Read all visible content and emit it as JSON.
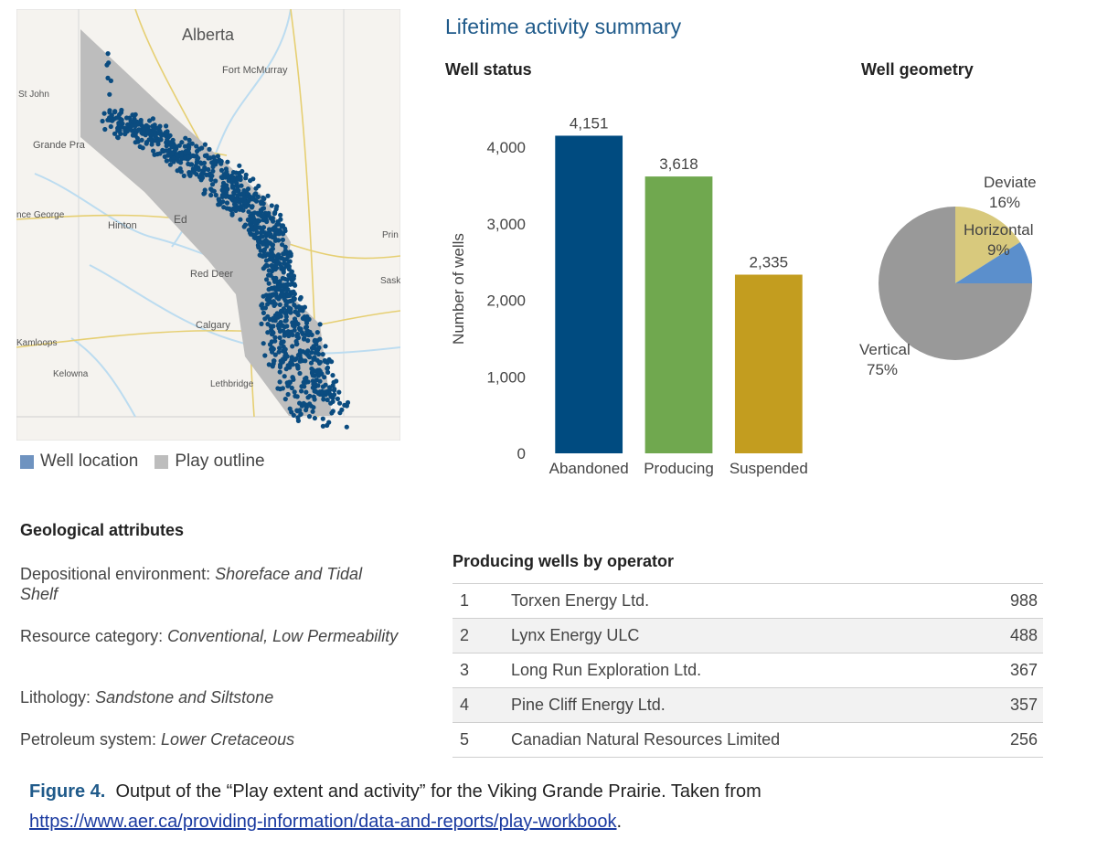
{
  "map": {
    "labels": [
      "Alberta",
      "Fort McMurray",
      "St John",
      "Grande Pra",
      "nce George",
      "Hinton",
      "Ed",
      "Prin",
      "Red Deer",
      "Sask",
      "Calgary",
      "Kamloops",
      "Kelowna",
      "Lethbridge"
    ],
    "legend": [
      {
        "label": "Well location",
        "color": "#6f93c0"
      },
      {
        "label": "Play outline",
        "color": "#bdbdbd"
      }
    ]
  },
  "summary_title": "Lifetime activity summary",
  "well_status_title": "Well status",
  "well_geometry_title": "Well geometry",
  "chart_data": [
    {
      "type": "bar",
      "title": "Well status",
      "ylabel": "Number of wells",
      "categories": [
        "Abandoned",
        "Producing",
        "Suspended"
      ],
      "values": [
        4151,
        3618,
        2335
      ],
      "value_labels": [
        "4,151",
        "3,618",
        "2,335"
      ],
      "colors": [
        "#004b80",
        "#70a84f",
        "#c39d1f"
      ],
      "ylim": [
        0,
        4300
      ],
      "yticks": [
        0,
        1000,
        2000,
        3000,
        4000
      ],
      "ytick_labels": [
        "0",
        "1,000",
        "2,000",
        "3,000",
        "4,000"
      ]
    },
    {
      "type": "pie",
      "title": "Well geometry",
      "slices": [
        {
          "name": "Vertical",
          "value": 75,
          "label": "75%",
          "color": "#999999"
        },
        {
          "name": "Deviate",
          "value": 16,
          "label": "16%",
          "color": "#d8c97d"
        },
        {
          "name": "Horizontal",
          "value": 9,
          "label": "9%",
          "color": "#5b8fcc"
        }
      ]
    }
  ],
  "geology": {
    "title": "Geological attributes",
    "items": [
      {
        "label": "Depositional environment: ",
        "value": "Shoreface and Tidal Shelf"
      },
      {
        "label": "Resource category: ",
        "value": "Conventional, Low Permeability"
      },
      {
        "label": "Lithology: ",
        "value": "Sandstone and Siltstone"
      },
      {
        "label": "Petroleum system: ",
        "value": "Lower Cretaceous"
      }
    ]
  },
  "operators": {
    "title": "Producing wells by operator",
    "rows": [
      {
        "rank": "1",
        "name": "Torxen Energy Ltd.",
        "value": "988"
      },
      {
        "rank": "2",
        "name": "Lynx Energy ULC",
        "value": "488"
      },
      {
        "rank": "3",
        "name": "Long Run Exploration Ltd.",
        "value": "367"
      },
      {
        "rank": "4",
        "name": "Pine Cliff Energy Ltd.",
        "value": "357"
      },
      {
        "rank": "5",
        "name": "Canadian Natural Resources Limited",
        "value": "256"
      }
    ]
  },
  "caption": {
    "figure": "Figure 4.",
    "text": "Output of the “Play extent and activity” for the Viking Grande Prairie. Taken from",
    "link": "https://www.aer.ca/providing-information/data-and-reports/play-workbook",
    "end": "."
  }
}
